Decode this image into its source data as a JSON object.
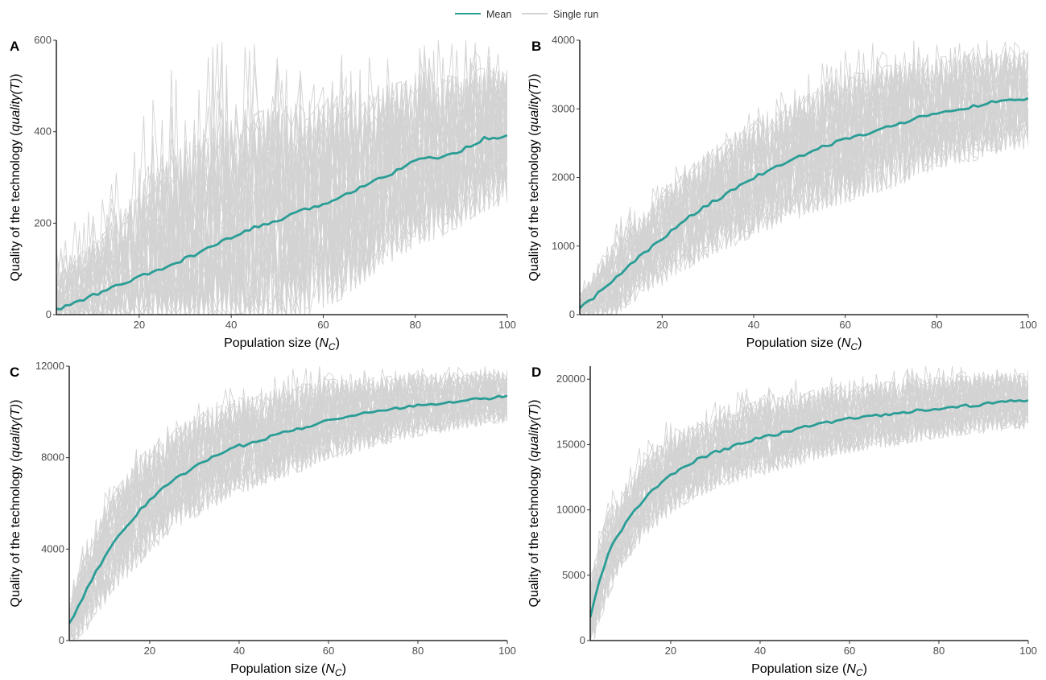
{
  "legend": {
    "mean_label": "Mean",
    "single_label": "Single run",
    "placement": "top-center"
  },
  "colors": {
    "mean": "#2a9d96",
    "single_run": "#d3d3d3",
    "axis": "#000000"
  },
  "chart_data": [
    {
      "type": "line",
      "panel": "A",
      "xlabel_prefix": "Population size (",
      "xlabel_sym": "N",
      "xlabel_sub": "C",
      "xlabel_suffix": ")",
      "ylabel_prefix": "Quality of the technology (",
      "ylabel_italic": "quality(T)",
      "ylabel_suffix": ")",
      "xlim": [
        2,
        100
      ],
      "ylim": [
        0,
        600
      ],
      "xticks": [
        20,
        40,
        60,
        80,
        100
      ],
      "yticks": [
        0,
        200,
        400,
        600
      ],
      "series": [
        {
          "name": "Mean",
          "x": [
            2,
            5,
            10,
            15,
            20,
            25,
            30,
            35,
            40,
            45,
            50,
            55,
            60,
            65,
            70,
            75,
            80,
            85,
            90,
            95,
            100
          ],
          "y": [
            10,
            22,
            42,
            62,
            82,
            100,
            122,
            145,
            168,
            190,
            205,
            225,
            242,
            262,
            290,
            310,
            340,
            342,
            360,
            385,
            390
          ]
        }
      ],
      "single_runs_band": {
        "lower": [
          0,
          0,
          0,
          0,
          0,
          5,
          15,
          30,
          45,
          60,
          75,
          90,
          110,
          130,
          155,
          175,
          200,
          220,
          240,
          260,
          290
        ],
        "upper": [
          150,
          200,
          250,
          320,
          420,
          520,
          560,
          600,
          600,
          600,
          600,
          600,
          600,
          600,
          600,
          600,
          600,
          600,
          600,
          600,
          600
        ]
      }
    },
    {
      "type": "line",
      "panel": "B",
      "xlabel_prefix": "Population size (",
      "xlabel_sym": "N",
      "xlabel_sub": "C",
      "xlabel_suffix": ")",
      "ylabel_prefix": "Quality of the technology (",
      "ylabel_italic": "quality(T)",
      "ylabel_suffix": ")",
      "xlim": [
        2,
        100
      ],
      "ylim": [
        0,
        4000
      ],
      "xticks": [
        20,
        40,
        60,
        80,
        100
      ],
      "yticks": [
        0,
        1000,
        2000,
        3000,
        4000
      ],
      "series": [
        {
          "name": "Mean",
          "x": [
            2,
            5,
            10,
            15,
            20,
            25,
            30,
            35,
            40,
            45,
            50,
            55,
            60,
            65,
            70,
            75,
            80,
            85,
            90,
            95,
            100
          ],
          "y": [
            100,
            250,
            550,
            850,
            1100,
            1380,
            1600,
            1800,
            2000,
            2150,
            2300,
            2450,
            2550,
            2650,
            2750,
            2850,
            2950,
            3000,
            3050,
            3150,
            3150
          ]
        }
      ],
      "single_runs_band": {
        "lower": [
          0,
          50,
          200,
          400,
          550,
          750,
          950,
          1150,
          1300,
          1450,
          1600,
          1750,
          1850,
          1950,
          2050,
          2150,
          2250,
          2300,
          2350,
          2400,
          2450
        ],
        "upper": [
          400,
          800,
          1400,
          1700,
          2000,
          2300,
          2600,
          2900,
          3100,
          3300,
          3500,
          3700,
          3850,
          3950,
          4000,
          4000,
          4000,
          4000,
          4000,
          4000,
          4000
        ]
      }
    },
    {
      "type": "line",
      "panel": "C",
      "xlabel_prefix": "Population size (",
      "xlabel_sym": "N",
      "xlabel_sub": "C",
      "xlabel_suffix": ")",
      "ylabel_prefix": "Quality of the technology (",
      "ylabel_italic": "quality(T)",
      "ylabel_suffix": ")",
      "xlim": [
        2,
        100
      ],
      "ylim": [
        0,
        12000
      ],
      "xticks": [
        20,
        40,
        60,
        80,
        100
      ],
      "yticks": [
        0,
        4000,
        8000,
        12000
      ],
      "series": [
        {
          "name": "Mean",
          "x": [
            2,
            4,
            6,
            8,
            10,
            12,
            15,
            18,
            20,
            25,
            30,
            35,
            40,
            45,
            50,
            55,
            60,
            65,
            70,
            75,
            80,
            85,
            90,
            95,
            100
          ],
          "y": [
            700,
            1500,
            2300,
            3000,
            3700,
            4300,
            5000,
            5800,
            6100,
            7000,
            7600,
            8100,
            8500,
            8800,
            9100,
            9350,
            9700,
            9800,
            10000,
            10150,
            10300,
            10400,
            10500,
            10600,
            10700
          ]
        }
      ],
      "single_runs_band": {
        "lower": [
          0,
          400,
          900,
          1400,
          2000,
          2600,
          3300,
          3900,
          4300,
          5200,
          5900,
          6400,
          6900,
          7300,
          7600,
          7900,
          8200,
          8500,
          8700,
          8900,
          9100,
          9200,
          9400,
          9500,
          9600
        ],
        "upper": [
          2000,
          3500,
          4800,
          5700,
          6600,
          7200,
          8200,
          9000,
          9200,
          10000,
          10600,
          11100,
          11400,
          11600,
          11800,
          12000,
          12000,
          12000,
          12000,
          12000,
          12000,
          12000,
          12000,
          12000,
          12000
        ]
      }
    },
    {
      "type": "line",
      "panel": "D",
      "xlabel_prefix": "Population size (",
      "xlabel_sym": "N",
      "xlabel_sub": "C",
      "xlabel_suffix": ")",
      "ylabel_prefix": "Quality of the technology (",
      "ylabel_italic": "quality(T)",
      "ylabel_suffix": ")",
      "xlim": [
        2,
        100
      ],
      "ylim": [
        0,
        21000
      ],
      "xticks": [
        20,
        40,
        60,
        80,
        100
      ],
      "yticks": [
        0,
        5000,
        10000,
        15000,
        20000
      ],
      "series": [
        {
          "name": "Mean",
          "x": [
            2,
            4,
            6,
            8,
            10,
            12,
            15,
            18,
            20,
            25,
            30,
            35,
            40,
            45,
            50,
            55,
            60,
            65,
            70,
            75,
            80,
            85,
            90,
            95,
            100
          ],
          "y": [
            1800,
            4500,
            6600,
            8000,
            9000,
            10000,
            11200,
            12100,
            12700,
            13700,
            14400,
            15000,
            15500,
            15900,
            16300,
            16700,
            17000,
            17200,
            17400,
            17600,
            17800,
            17950,
            18100,
            18300,
            18350
          ]
        }
      ],
      "single_runs_band": {
        "lower": [
          0,
          2000,
          4000,
          5800,
          7000,
          8000,
          9200,
          10000,
          10600,
          11600,
          12400,
          13000,
          13600,
          14000,
          14400,
          14800,
          15100,
          15400,
          15600,
          15800,
          16000,
          16100,
          16300,
          16400,
          16500
        ],
        "upper": [
          6000,
          9000,
          11000,
          12400,
          13500,
          14500,
          15500,
          16500,
          17000,
          17800,
          18500,
          19200,
          19700,
          20000,
          20300,
          20500,
          20700,
          20900,
          21000,
          21000,
          21000,
          21000,
          21000,
          21000,
          21000
        ]
      }
    }
  ]
}
